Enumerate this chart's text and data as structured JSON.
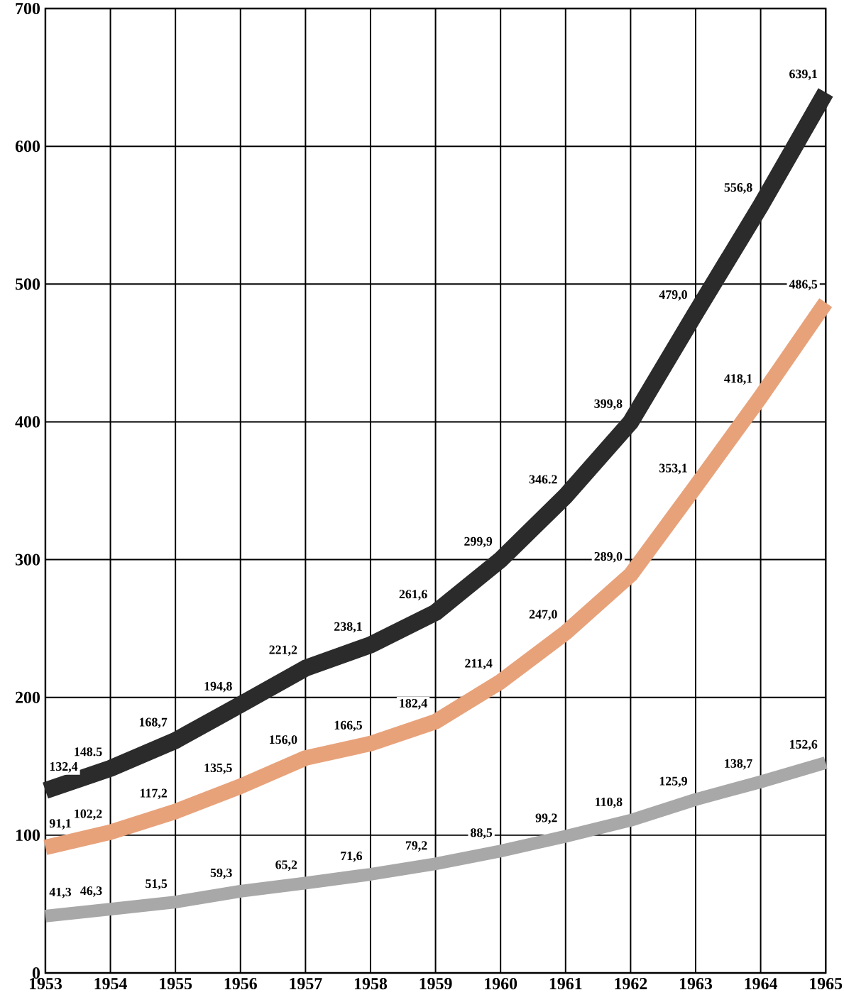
{
  "chart_data": {
    "type": "line",
    "x": [
      1953,
      1954,
      1955,
      1956,
      1957,
      1958,
      1959,
      1960,
      1961,
      1962,
      1963,
      1964,
      1965
    ],
    "xlim": [
      1953,
      1965
    ],
    "xticks": [
      1953,
      1954,
      1955,
      1956,
      1957,
      1958,
      1959,
      1960,
      1961,
      1962,
      1963,
      1964,
      1965
    ],
    "ylim": [
      0,
      700
    ],
    "yticks": [
      0,
      100,
      200,
      300,
      400,
      500,
      600,
      700
    ],
    "grid": true,
    "marker": "none",
    "line_style": "solid",
    "series": [
      {
        "color": "#2b2b2b",
        "values": [
          132.4,
          148.5,
          168.7,
          194.8,
          221.2,
          238.1,
          261.6,
          299.9,
          346.2,
          399.8,
          479.0,
          556.8,
          639.1
        ],
        "value_labels": [
          "132,4",
          "148.5",
          "168,7",
          "194,8",
          "221,2",
          "238,1",
          "261,6",
          "299,9",
          "346.2",
          "399,8",
          "479,0",
          "556,8",
          "639,1"
        ]
      },
      {
        "color": "#e8a27a",
        "values": [
          91.1,
          102.2,
          117.2,
          135.5,
          156.0,
          166.5,
          182.4,
          211.4,
          247.0,
          289.0,
          353.1,
          418.1,
          486.5
        ],
        "value_labels": [
          "91,1",
          "102,2",
          "117,2",
          "135,5",
          "156,0",
          "166,5",
          "182,4",
          "211,4",
          "247,0",
          "289,0",
          "353,1",
          "418,1",
          "486,5"
        ]
      },
      {
        "color": "#a8a8a8",
        "values": [
          41.3,
          46.3,
          51.5,
          59.3,
          65.2,
          71.6,
          79.2,
          88.5,
          99.2,
          110.8,
          125.9,
          138.7,
          152.6
        ],
        "value_labels": [
          "41,3",
          "46,3",
          "51,5",
          "59,3",
          "65,2",
          "71,6",
          "79,2",
          "88,5",
          "99,2",
          "110,8",
          "125,9",
          "138,7",
          "152,6"
        ]
      }
    ]
  }
}
